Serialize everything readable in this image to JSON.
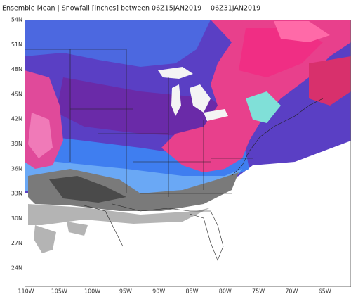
{
  "header": {
    "title": "Ensemble Mean | Snowfall [inches] between 06Z15JAN2019 -- 06Z31JAN2019"
  },
  "map": {
    "lat_labels": [
      "54N",
      "51N",
      "48N",
      "45N",
      "42N",
      "39N",
      "36N",
      "33N",
      "30N",
      "27N",
      "24N"
    ],
    "lon_labels": [
      "110W",
      "105W",
      "100W",
      "95W",
      "90W",
      "85W",
      "80W",
      "75W",
      "70W",
      "65W"
    ]
  }
}
